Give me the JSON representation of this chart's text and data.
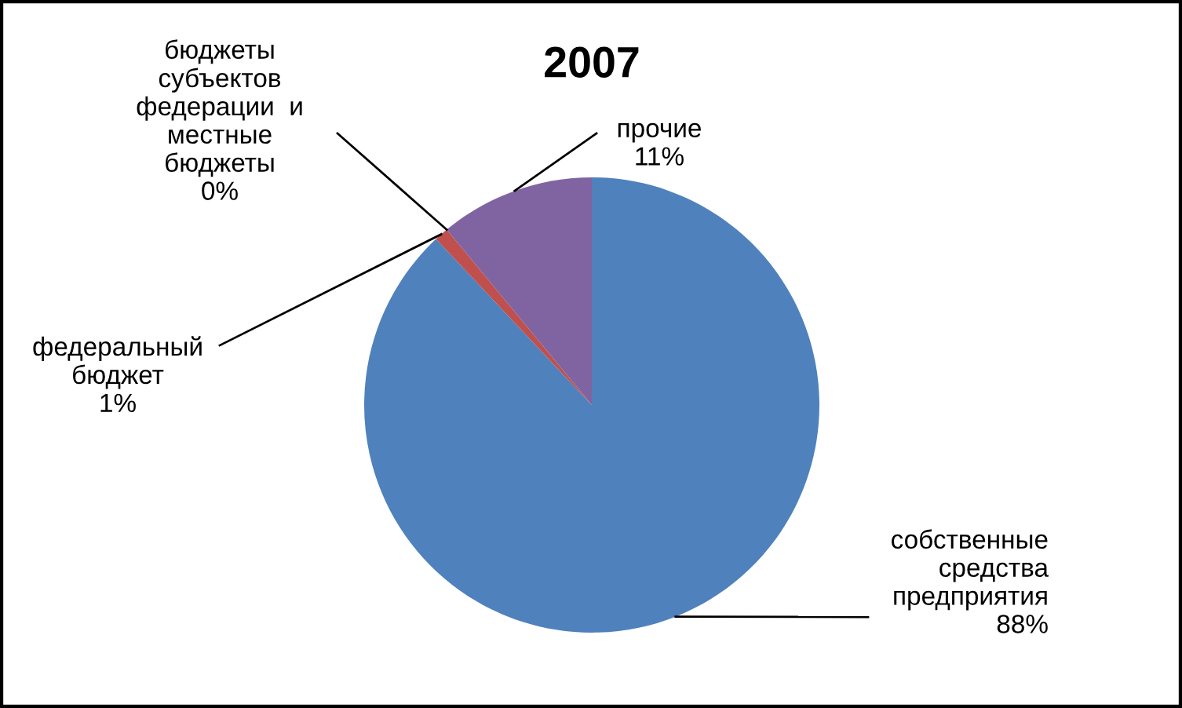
{
  "chart_data": {
    "type": "pie",
    "title": "2007",
    "categories": [
      "собственные средства предприятия",
      "федеральный бюджет",
      "бюджеты субъектов федерации  и местные бюджеты",
      "прочие"
    ],
    "values": [
      88,
      1,
      0,
      11
    ],
    "colors": [
      "#4f81bd",
      "#c0504d",
      "#9bbb59",
      "#8064a2"
    ],
    "value_labels": [
      "88%",
      "1%",
      "0%",
      "11%"
    ]
  }
}
